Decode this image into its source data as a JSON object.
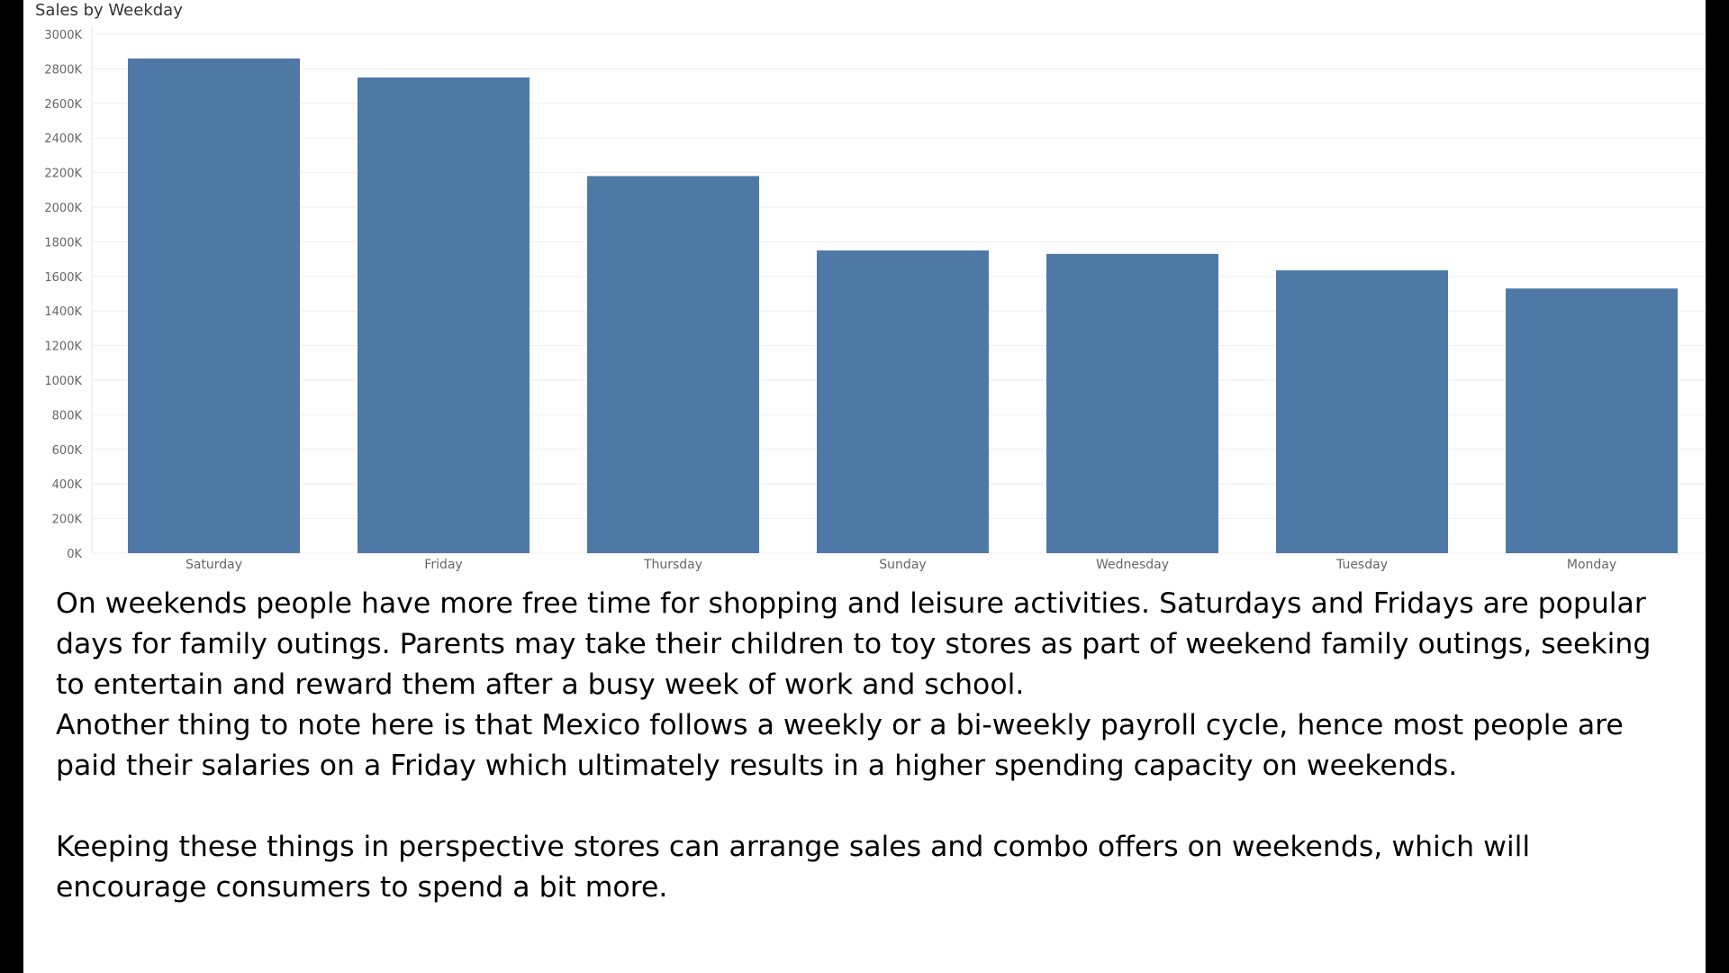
{
  "chart_data": {
    "type": "bar",
    "title": "Sales by Weekday",
    "xlabel": "",
    "ylabel": "",
    "categories": [
      "Saturday",
      "Friday",
      "Thursday",
      "Sunday",
      "Wednesday",
      "Tuesday",
      "Monday"
    ],
    "values": [
      2860,
      2750,
      2180,
      1750,
      1730,
      1635,
      1530
    ],
    "y_unit_suffix": "K",
    "ylim": [
      0,
      3000
    ],
    "yticks": [
      "0K",
      "200K",
      "400K",
      "600K",
      "800K",
      "1000K",
      "1200K",
      "1400K",
      "1600K",
      "1800K",
      "2000K",
      "2200K",
      "2400K",
      "2600K",
      "2800K",
      "3000K"
    ],
    "grid": true,
    "legend": "none",
    "bar_color": "#4e79a7"
  },
  "commentary": {
    "paragraph_1": "On weekends people have more free time for shopping and leisure activities. Saturdays and Fridays are popular days for family outings. Parents may take their children to toy stores as part of weekend family outings, seeking to entertain and reward them after a busy week of work and school.",
    "paragraph_2": "Another thing to note here is that Mexico follows a weekly or a bi-weekly payroll cycle, hence most people are paid their salaries on a Friday which ultimately results in a higher spending capacity on weekends.",
    "paragraph_3": "Keeping these things in perspective stores can arrange sales and combo offers on weekends, which will encourage consumers to spend a bit more."
  }
}
